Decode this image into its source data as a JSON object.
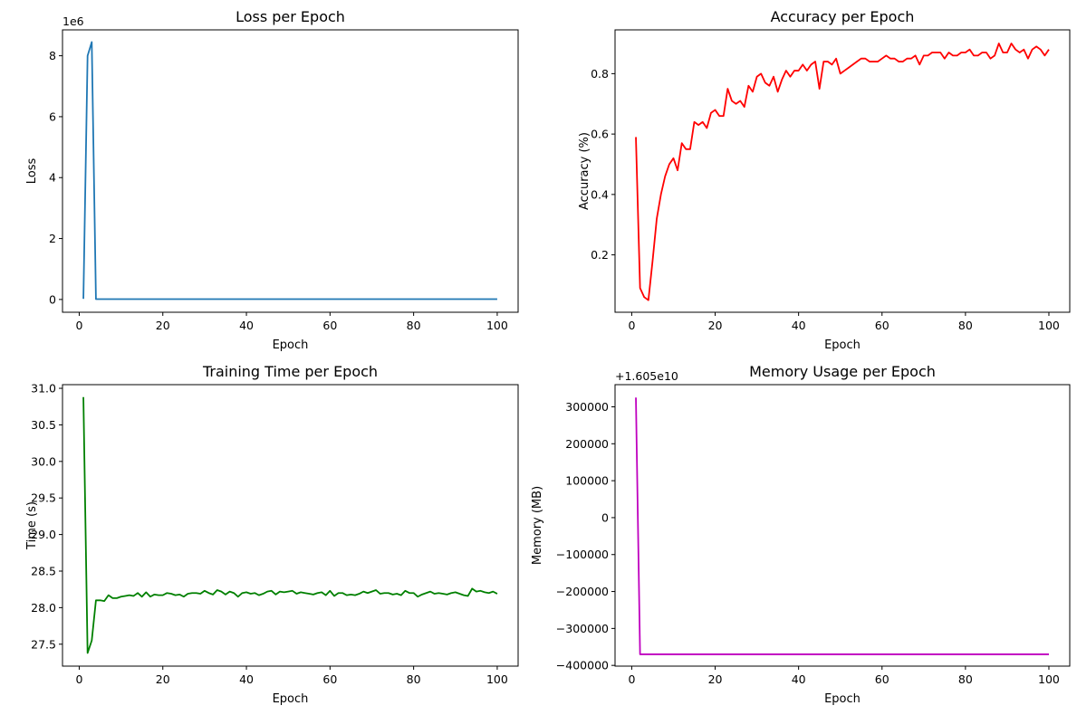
{
  "chart_data": [
    {
      "type": "line",
      "title": "Loss per Epoch",
      "xlabel": "Epoch",
      "ylabel": "Loss",
      "offset_text": "1e6",
      "color": "#1f77b4",
      "xlim": [
        -4,
        105
      ],
      "ylim": [
        -0.42,
        8.85
      ],
      "xticks": [
        0,
        20,
        40,
        60,
        80,
        100
      ],
      "yticks": [
        0,
        2,
        4,
        6,
        8
      ],
      "ytick_labels": [
        "0",
        "2",
        "4",
        "6",
        "8"
      ],
      "series": [
        {
          "x": [
            1,
            2,
            3,
            4,
            100
          ],
          "y": [
            0.02,
            8.0,
            8.45,
            0.01,
            0.01
          ]
        }
      ]
    },
    {
      "type": "line",
      "title": "Accuracy per Epoch",
      "xlabel": "Epoch",
      "ylabel": "Accuracy (%)",
      "color": "#ff0000",
      "xlim": [
        -4,
        105
      ],
      "ylim": [
        0.01,
        0.945
      ],
      "xticks": [
        0,
        20,
        40,
        60,
        80,
        100
      ],
      "yticks": [
        0.2,
        0.4,
        0.6,
        0.8
      ],
      "ytick_labels": [
        "0.2",
        "0.4",
        "0.6",
        "0.8"
      ],
      "series": [
        {
          "x": [
            1,
            2,
            3,
            4,
            5,
            6,
            7,
            8,
            9,
            10,
            11,
            12,
            13,
            14,
            15,
            16,
            17,
            18,
            19,
            20,
            21,
            22,
            23,
            24,
            25,
            26,
            27,
            28,
            29,
            30,
            31,
            32,
            33,
            34,
            35,
            36,
            37,
            38,
            39,
            40,
            41,
            42,
            43,
            44,
            45,
            46,
            47,
            48,
            49,
            50,
            51,
            52,
            53,
            54,
            55,
            56,
            57,
            58,
            59,
            60,
            61,
            62,
            63,
            64,
            65,
            66,
            67,
            68,
            69,
            70,
            71,
            72,
            73,
            74,
            75,
            76,
            77,
            78,
            79,
            80,
            81,
            82,
            83,
            84,
            85,
            86,
            87,
            88,
            89,
            90,
            91,
            92,
            93,
            94,
            95,
            96,
            97,
            98,
            99,
            100
          ],
          "y": [
            0.59,
            0.09,
            0.06,
            0.05,
            0.18,
            0.32,
            0.4,
            0.46,
            0.5,
            0.52,
            0.48,
            0.57,
            0.55,
            0.55,
            0.64,
            0.63,
            0.64,
            0.62,
            0.67,
            0.68,
            0.66,
            0.66,
            0.75,
            0.71,
            0.7,
            0.71,
            0.69,
            0.76,
            0.74,
            0.79,
            0.8,
            0.77,
            0.76,
            0.79,
            0.74,
            0.78,
            0.81,
            0.79,
            0.81,
            0.81,
            0.83,
            0.81,
            0.83,
            0.84,
            0.75,
            0.84,
            0.84,
            0.83,
            0.85,
            0.8,
            0.81,
            0.82,
            0.83,
            0.84,
            0.85,
            0.85,
            0.84,
            0.84,
            0.84,
            0.85,
            0.86,
            0.85,
            0.85,
            0.84,
            0.84,
            0.85,
            0.85,
            0.86,
            0.83,
            0.86,
            0.86,
            0.87,
            0.87,
            0.87,
            0.85,
            0.87,
            0.86,
            0.86,
            0.87,
            0.87,
            0.88,
            0.86,
            0.86,
            0.87,
            0.87,
            0.85,
            0.86,
            0.9,
            0.87,
            0.87,
            0.9,
            0.88,
            0.87,
            0.88,
            0.85,
            0.88,
            0.89,
            0.88,
            0.86,
            0.88
          ]
        }
      ]
    },
    {
      "type": "line",
      "title": "Training Time per Epoch",
      "xlabel": "Epoch",
      "ylabel": "Time (s)",
      "color": "#008000",
      "xlim": [
        -4,
        105
      ],
      "ylim": [
        27.2,
        31.05
      ],
      "xticks": [
        0,
        20,
        40,
        60,
        80,
        100
      ],
      "yticks": [
        27.5,
        28.0,
        28.5,
        29.0,
        29.5,
        30.0,
        30.5,
        31.0
      ],
      "ytick_labels": [
        "27.5",
        "28.0",
        "28.5",
        "29.0",
        "29.5",
        "30.0",
        "30.5",
        "31.0"
      ],
      "series": [
        {
          "x": [
            1,
            2,
            3,
            4,
            5,
            6,
            7,
            8,
            9,
            10,
            11,
            12,
            13,
            14,
            15,
            16,
            17,
            18,
            19,
            20,
            21,
            22,
            23,
            24,
            25,
            26,
            27,
            28,
            29,
            30,
            31,
            32,
            33,
            34,
            35,
            36,
            37,
            38,
            39,
            40,
            41,
            42,
            43,
            44,
            45,
            46,
            47,
            48,
            49,
            50,
            51,
            52,
            53,
            54,
            55,
            56,
            57,
            58,
            59,
            60,
            61,
            62,
            63,
            64,
            65,
            66,
            67,
            68,
            69,
            70,
            71,
            72,
            73,
            74,
            75,
            76,
            77,
            78,
            79,
            80,
            81,
            82,
            83,
            84,
            85,
            86,
            87,
            88,
            89,
            90,
            91,
            92,
            93,
            94,
            95,
            96,
            97,
            98,
            99,
            100
          ],
          "y": [
            30.88,
            27.38,
            27.55,
            28.1,
            28.1,
            28.09,
            28.17,
            28.13,
            28.13,
            28.15,
            28.16,
            28.17,
            28.16,
            28.2,
            28.15,
            28.21,
            28.15,
            28.18,
            28.17,
            28.17,
            28.2,
            28.19,
            28.17,
            28.18,
            28.15,
            28.19,
            28.2,
            28.2,
            28.19,
            28.23,
            28.2,
            28.18,
            28.24,
            28.22,
            28.18,
            28.22,
            28.2,
            28.15,
            28.2,
            28.21,
            28.19,
            28.2,
            28.17,
            28.19,
            28.22,
            28.23,
            28.18,
            28.22,
            28.21,
            28.22,
            28.23,
            28.19,
            28.21,
            28.2,
            28.19,
            28.18,
            28.2,
            28.21,
            28.17,
            28.23,
            28.16,
            28.2,
            28.2,
            28.17,
            28.18,
            28.17,
            28.19,
            28.22,
            28.2,
            28.22,
            28.24,
            28.19,
            28.2,
            28.2,
            28.18,
            28.19,
            28.17,
            28.23,
            28.2,
            28.2,
            28.15,
            28.18,
            28.2,
            28.22,
            28.19,
            28.2,
            28.19,
            28.18,
            28.2,
            28.21,
            28.19,
            28.17,
            28.16,
            28.26,
            28.22,
            28.23,
            28.21,
            28.2,
            28.22,
            28.19
          ]
        }
      ]
    },
    {
      "type": "line",
      "title": "Memory Usage per Epoch",
      "xlabel": "Epoch",
      "ylabel": "Memory (MB)",
      "offset_text": "+1.605e10",
      "color": "#bf00bf",
      "xlim": [
        -4,
        105
      ],
      "ylim": [
        -402000,
        360000
      ],
      "xticks": [
        0,
        20,
        40,
        60,
        80,
        100
      ],
      "yticks": [
        -400000,
        -300000,
        -200000,
        -100000,
        0,
        100000,
        200000,
        300000
      ],
      "ytick_labels": [
        "−400000",
        "−300000",
        "−200000",
        "−100000",
        "0",
        "100000",
        "200000",
        "300000"
      ],
      "series": [
        {
          "x": [
            1,
            2,
            100
          ],
          "y": [
            325000,
            -370000,
            -370000
          ]
        }
      ]
    }
  ]
}
